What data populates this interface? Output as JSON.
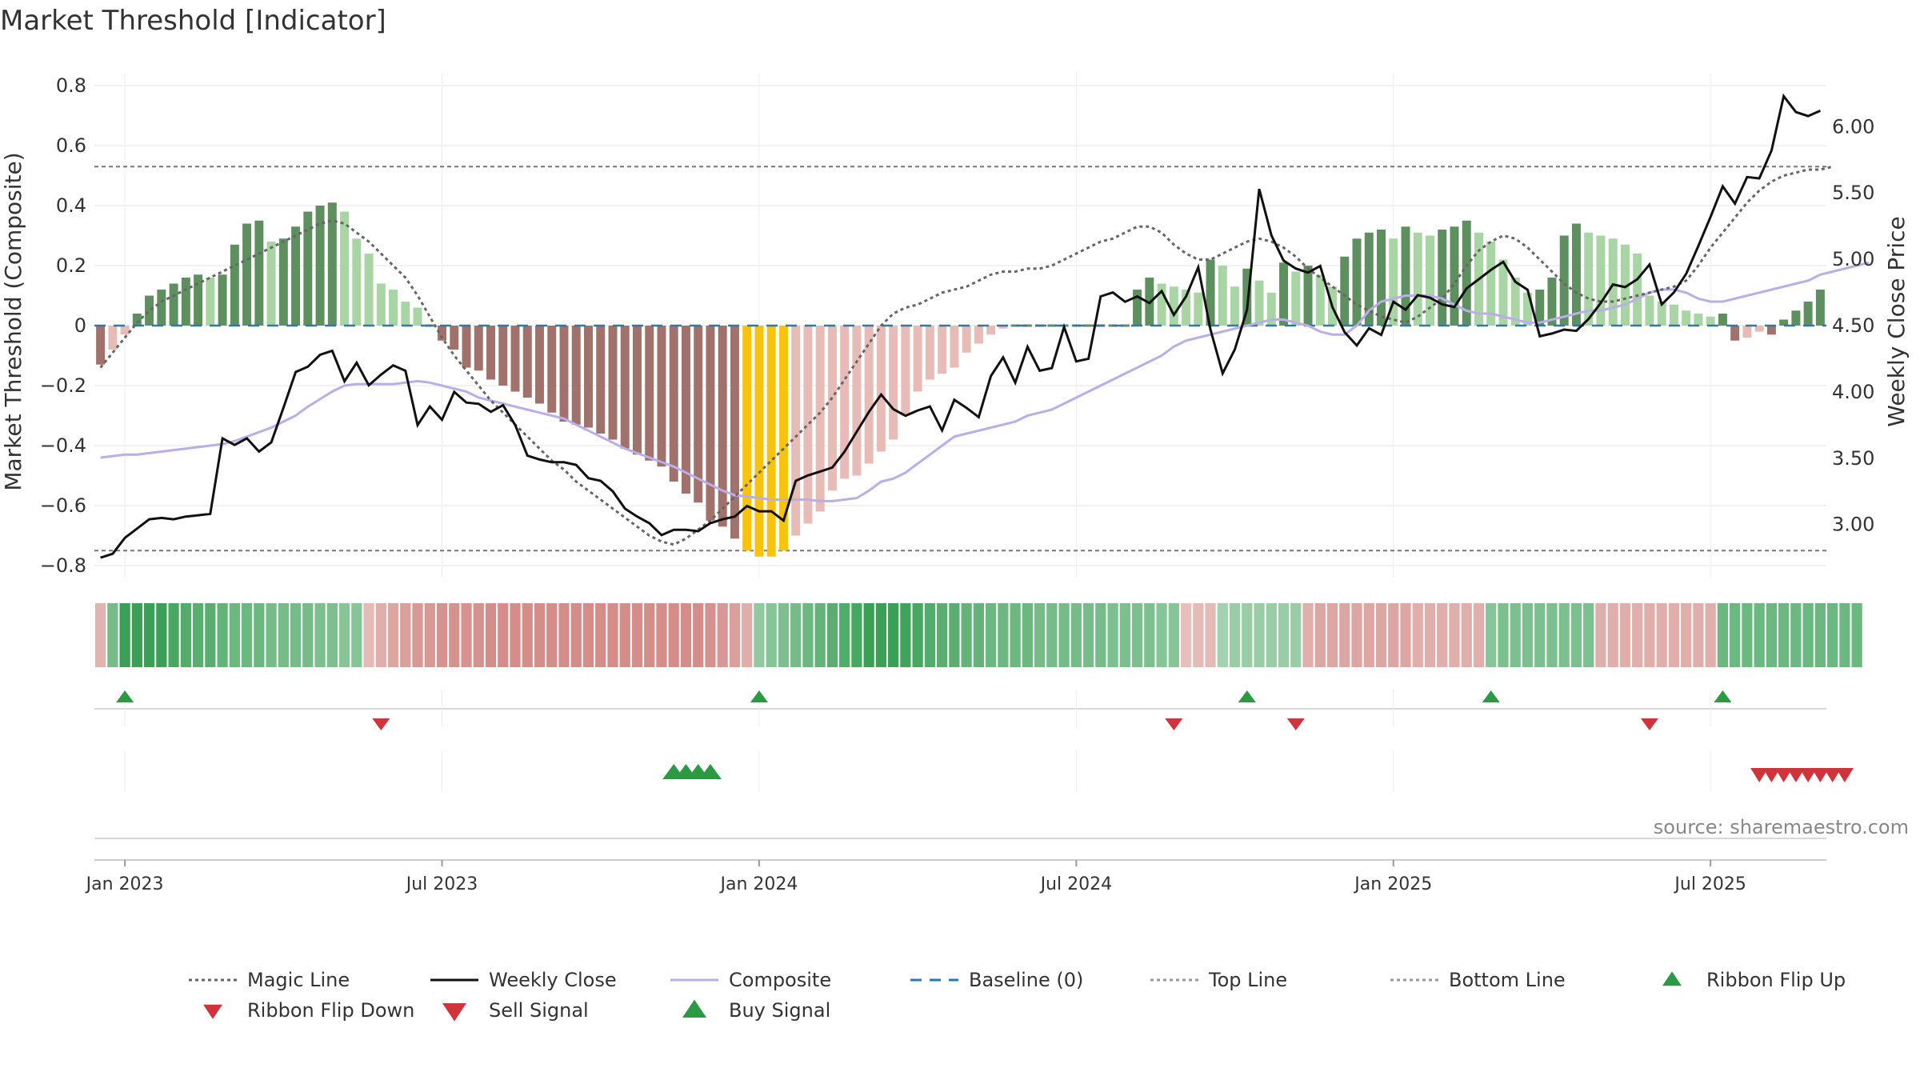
{
  "chart_data": {
    "type": "bar",
    "title": "Market Threshold [Indicator]",
    "ylabel": "Market Threshold (Composite)",
    "y2label": "Weekly Close Price",
    "ylim": [
      -0.84,
      0.84
    ],
    "y2lim": [
      2.6,
      6.4
    ],
    "yticks": [
      0.8,
      0.6,
      0.4,
      0.2,
      0,
      -0.2,
      -0.4,
      -0.6,
      -0.8
    ],
    "yticklabels": [
      "0.8",
      "0.6",
      "0.4",
      "0.2",
      "0",
      "−0.2",
      "−0.4",
      "−0.6",
      "−0.8"
    ],
    "y2ticks": [
      6.0,
      5.5,
      5.0,
      4.5,
      4.0,
      3.5,
      3.0
    ],
    "y2ticklabels": [
      "6.00",
      "5.50",
      "5.00",
      "4.50",
      "4.00",
      "3.50",
      "3.00"
    ],
    "top_line": 0.53,
    "bottom_line": -0.75,
    "x_start_week": -2,
    "weeks_total": 142,
    "xticks": [
      {
        "week": 0,
        "label": "Jan 2023"
      },
      {
        "week": 26,
        "label": "Jul 2023"
      },
      {
        "week": 52,
        "label": "Jan 2024"
      },
      {
        "week": 78,
        "label": "Jul 2024"
      },
      {
        "week": 104,
        "label": "Jan 2025"
      },
      {
        "week": 130,
        "label": "Jul 2025"
      }
    ],
    "composite_bars": [
      -0.13,
      -0.08,
      -0.03,
      0.04,
      0.1,
      0.12,
      0.14,
      0.16,
      0.17,
      0.16,
      0.17,
      0.27,
      0.34,
      0.35,
      0.28,
      0.29,
      0.33,
      0.38,
      0.4,
      0.41,
      0.38,
      0.29,
      0.24,
      0.14,
      0.12,
      0.08,
      0.06,
      0,
      -0.05,
      -0.08,
      -0.14,
      -0.15,
      -0.18,
      -0.2,
      -0.22,
      -0.24,
      -0.26,
      -0.29,
      -0.32,
      -0.33,
      -0.34,
      -0.36,
      -0.38,
      -0.41,
      -0.43,
      -0.45,
      -0.47,
      -0.52,
      -0.56,
      -0.59,
      -0.65,
      -0.67,
      -0.71,
      -0.75,
      -0.77,
      -0.77,
      -0.75,
      -0.7,
      -0.66,
      -0.62,
      -0.55,
      -0.51,
      -0.5,
      -0.46,
      -0.42,
      -0.38,
      -0.3,
      -0.22,
      -0.18,
      -0.16,
      -0.14,
      -0.09,
      -0.06,
      -0.03,
      -0.01,
      0,
      0,
      0,
      0,
      0,
      0,
      0,
      0,
      0,
      0,
      0.12,
      0.16,
      0.14,
      0.13,
      0.12,
      0.11,
      0.22,
      0.2,
      0.13,
      0.19,
      0.15,
      0.11,
      0.21,
      0.18,
      0.2,
      0.17,
      0.13,
      0.23,
      0.29,
      0.31,
      0.32,
      0.29,
      0.33,
      0.31,
      0.3,
      0.32,
      0.33,
      0.35,
      0.31,
      0.28,
      0.22,
      0.16,
      0.11,
      0.12,
      0.16,
      0.3,
      0.34,
      0.31,
      0.3,
      0.29,
      0.27,
      0.24,
      0.1,
      0.08,
      0.07,
      0.05,
      0.04,
      0.03,
      0.04,
      -0.05,
      -0.04,
      -0.02,
      -0.03,
      0.02,
      0.05,
      0.08,
      0.12
    ],
    "composite_line": [
      -0.44,
      -0.435,
      -0.43,
      -0.43,
      -0.425,
      -0.42,
      -0.415,
      -0.41,
      -0.405,
      -0.4,
      -0.395,
      -0.385,
      -0.37,
      -0.355,
      -0.34,
      -0.32,
      -0.3,
      -0.27,
      -0.245,
      -0.22,
      -0.2,
      -0.195,
      -0.195,
      -0.195,
      -0.195,
      -0.19,
      -0.185,
      -0.19,
      -0.2,
      -0.21,
      -0.22,
      -0.24,
      -0.25,
      -0.26,
      -0.27,
      -0.28,
      -0.29,
      -0.3,
      -0.31,
      -0.33,
      -0.35,
      -0.37,
      -0.39,
      -0.41,
      -0.425,
      -0.44,
      -0.455,
      -0.47,
      -0.49,
      -0.51,
      -0.53,
      -0.55,
      -0.565,
      -0.57,
      -0.575,
      -0.58,
      -0.58,
      -0.58,
      -0.58,
      -0.585,
      -0.585,
      -0.58,
      -0.575,
      -0.55,
      -0.52,
      -0.51,
      -0.49,
      -0.46,
      -0.43,
      -0.4,
      -0.37,
      -0.36,
      -0.35,
      -0.34,
      -0.33,
      -0.32,
      -0.3,
      -0.29,
      -0.28,
      -0.26,
      -0.24,
      -0.22,
      -0.2,
      -0.18,
      -0.16,
      -0.14,
      -0.12,
      -0.1,
      -0.07,
      -0.05,
      -0.04,
      -0.03,
      -0.02,
      -0.01,
      0,
      0.01,
      0.02,
      0.02,
      0.01,
      0,
      -0.02,
      -0.03,
      -0.03,
      0,
      0.05,
      0.08,
      0.09,
      0.1,
      0.1,
      0.1,
      0.09,
      0.07,
      0.05,
      0.04,
      0.04,
      0.03,
      0.02,
      0.01,
      0.01,
      0.02,
      0.03,
      0.04,
      0.05,
      0.05,
      0.06,
      0.07,
      0.09,
      0.11,
      0.12,
      0.12,
      0.11,
      0.09,
      0.08,
      0.08,
      0.09,
      0.1,
      0.11,
      0.12,
      0.13,
      0.14,
      0.15,
      0.17,
      0.18,
      0.19,
      0.2,
      0.21
    ],
    "magic_line": [
      -0.14,
      -0.09,
      -0.04,
      0.01,
      0.05,
      0.08,
      0.1,
      0.12,
      0.14,
      0.16,
      0.18,
      0.2,
      0.22,
      0.24,
      0.26,
      0.28,
      0.3,
      0.32,
      0.34,
      0.35,
      0.34,
      0.31,
      0.28,
      0.24,
      0.2,
      0.16,
      0.1,
      0.03,
      -0.04,
      -0.1,
      -0.15,
      -0.2,
      -0.25,
      -0.29,
      -0.33,
      -0.37,
      -0.41,
      -0.45,
      -0.48,
      -0.52,
      -0.55,
      -0.58,
      -0.61,
      -0.64,
      -0.67,
      -0.7,
      -0.72,
      -0.73,
      -0.71,
      -0.68,
      -0.65,
      -0.61,
      -0.57,
      -0.53,
      -0.49,
      -0.45,
      -0.41,
      -0.37,
      -0.33,
      -0.29,
      -0.24,
      -0.18,
      -0.12,
      -0.06,
      0.0,
      0.04,
      0.06,
      0.07,
      0.09,
      0.11,
      0.12,
      0.13,
      0.15,
      0.17,
      0.18,
      0.18,
      0.19,
      0.19,
      0.2,
      0.22,
      0.24,
      0.26,
      0.28,
      0.29,
      0.31,
      0.33,
      0.33,
      0.31,
      0.27,
      0.24,
      0.22,
      0.22,
      0.24,
      0.26,
      0.28,
      0.29,
      0.28,
      0.26,
      0.23,
      0.19,
      0.16,
      0.13,
      0.1,
      0.07,
      0.05,
      0.03,
      0.02,
      0.01,
      0.03,
      0.06,
      0.09,
      0.14,
      0.2,
      0.25,
      0.28,
      0.3,
      0.29,
      0.26,
      0.22,
      0.18,
      0.14,
      0.11,
      0.09,
      0.08,
      0.08,
      0.09,
      0.1,
      0.11,
      0.12,
      0.13,
      0.15,
      0.2,
      0.26,
      0.31,
      0.36,
      0.41,
      0.45,
      0.48,
      0.5,
      0.51,
      0.52,
      0.52,
      0.53
    ],
    "weekly_close": [
      2.75,
      2.78,
      2.9,
      2.97,
      3.04,
      3.05,
      3.04,
      3.06,
      3.07,
      3.08,
      3.65,
      3.6,
      3.65,
      3.55,
      3.62,
      3.88,
      4.15,
      4.19,
      4.28,
      4.31,
      4.08,
      4.22,
      4.05,
      4.13,
      4.2,
      4.16,
      3.75,
      3.89,
      3.79,
      4.0,
      3.92,
      3.91,
      3.85,
      3.9,
      3.75,
      3.52,
      3.49,
      3.47,
      3.47,
      3.45,
      3.35,
      3.33,
      3.25,
      3.12,
      3.06,
      3.01,
      2.92,
      2.96,
      2.96,
      2.95,
      3.01,
      3.04,
      3.06,
      3.14,
      3.1,
      3.1,
      3.03,
      3.33,
      3.37,
      3.4,
      3.43,
      3.55,
      3.7,
      3.85,
      3.98,
      3.87,
      3.82,
      3.86,
      3.89,
      3.71,
      3.94,
      3.88,
      3.81,
      4.12,
      4.26,
      4.07,
      4.34,
      4.16,
      4.18,
      4.49,
      4.23,
      4.25,
      4.72,
      4.75,
      4.68,
      4.72,
      4.67,
      4.76,
      4.58,
      4.72,
      4.94,
      4.47,
      4.14,
      4.32,
      4.62,
      5.53,
      5.18,
      4.99,
      4.93,
      4.9,
      4.95,
      4.64,
      4.45,
      4.35,
      4.48,
      4.43,
      4.68,
      4.62,
      4.73,
      4.71,
      4.66,
      4.64,
      4.78,
      4.85,
      4.92,
      4.98,
      4.83,
      4.77,
      4.42,
      4.44,
      4.47,
      4.46,
      4.55,
      4.67,
      4.81,
      4.79,
      4.85,
      4.96,
      4.66,
      4.75,
      4.89,
      5.1,
      5.32,
      5.55,
      5.42,
      5.62,
      5.61,
      5.82,
      6.23,
      6.11,
      6.08,
      6.12
    ],
    "ribbon": [
      -0.3,
      0.5,
      0.9,
      0.9,
      0.9,
      0.85,
      0.75,
      0.7,
      0.65,
      0.65,
      0.6,
      0.55,
      0.55,
      0.55,
      0.5,
      0.5,
      0.5,
      0.5,
      0.45,
      0.45,
      0.4,
      0.4,
      -0.25,
      -0.35,
      -0.4,
      -0.45,
      -0.5,
      -0.5,
      -0.55,
      -0.55,
      -0.55,
      -0.55,
      -0.6,
      -0.6,
      -0.6,
      -0.6,
      -0.6,
      -0.6,
      -0.6,
      -0.6,
      -0.6,
      -0.6,
      -0.6,
      -0.6,
      -0.6,
      -0.6,
      -0.6,
      -0.6,
      -0.6,
      -0.6,
      -0.55,
      -0.5,
      -0.45,
      -0.35,
      0.35,
      0.4,
      0.45,
      0.5,
      0.55,
      0.6,
      0.65,
      0.7,
      0.75,
      0.85,
      0.9,
      0.85,
      0.8,
      0.75,
      0.7,
      0.65,
      0.65,
      0.6,
      0.6,
      0.55,
      0.55,
      0.55,
      0.55,
      0.5,
      0.5,
      0.5,
      0.5,
      0.5,
      0.5,
      0.45,
      0.45,
      0.45,
      0.45,
      0.4,
      0.4,
      -0.2,
      -0.25,
      -0.25,
      0.25,
      0.3,
      0.3,
      0.3,
      0.3,
      0.3,
      0.3,
      -0.35,
      -0.4,
      -0.4,
      -0.4,
      -0.4,
      -0.4,
      -0.4,
      -0.4,
      -0.4,
      -0.35,
      -0.35,
      -0.35,
      -0.35,
      -0.35,
      -0.35,
      0.4,
      0.45,
      0.45,
      0.45,
      0.45,
      0.45,
      0.45,
      0.45,
      0.45,
      -0.35,
      -0.35,
      -0.35,
      -0.35,
      -0.35,
      -0.35,
      -0.35,
      -0.35,
      -0.35,
      -0.35,
      0.55,
      0.55,
      0.55,
      0.55,
      0.55,
      0.55,
      0.55,
      0.55,
      0.55,
      0.55,
      0.55,
      0.55
    ],
    "ribbon_flip_up": [
      0,
      52,
      92,
      112,
      131
    ],
    "ribbon_flip_down": [
      21,
      86,
      96,
      125
    ],
    "buy_signals": [
      45,
      46,
      47,
      48
    ],
    "sell_signals": [
      134,
      135,
      136,
      137,
      138,
      139,
      140,
      141
    ],
    "source": "source: sharemaestro.com",
    "legend": [
      {
        "label": "Magic Line",
        "style": "dotted",
        "color": "#666666"
      },
      {
        "label": "Weekly Close",
        "style": "solid",
        "color": "#111111"
      },
      {
        "label": "Composite",
        "style": "solid",
        "color": "#b9aee8"
      },
      {
        "label": "Baseline (0)",
        "style": "dashed",
        "color": "#2a7ab0"
      },
      {
        "label": "Top Line",
        "style": "dotted",
        "color": "#999999"
      },
      {
        "label": "Bottom Line",
        "style": "dotted",
        "color": "#999999"
      },
      {
        "label": "Ribbon Flip Up",
        "style": "up",
        "color": "#2a9a45"
      },
      {
        "label": "Ribbon Flip Down",
        "style": "down",
        "color": "#d0343a"
      },
      {
        "label": "Sell Signal",
        "style": "down-lg",
        "color": "#d0343a"
      },
      {
        "label": "Buy Signal",
        "style": "up-lg",
        "color": "#2a9a45"
      }
    ],
    "colors": {
      "bar_pos_dark": "#5e8f5e",
      "bar_pos_light": "#a8d5a3",
      "bar_neg_dark": "#a1726c",
      "bar_neg_light": "#e8bcb6",
      "bar_extreme": "#f7c30c",
      "magic": "#666666",
      "close": "#111111",
      "composite": "#b9aee8",
      "baseline": "#2a7ab0",
      "threshold": "#777777",
      "up": "#2a9a45",
      "down": "#d0343a"
    }
  }
}
